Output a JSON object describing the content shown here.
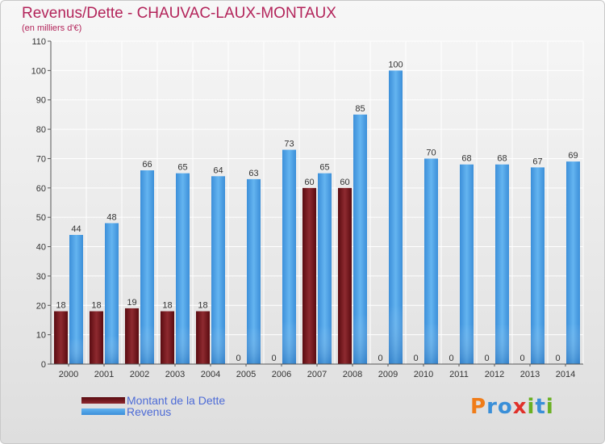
{
  "header": {
    "title": "Revenus/Dette - CHAUVAC-LAUX-MONTAUX",
    "subtitle": "(en milliers d'€)"
  },
  "legend": [
    {
      "label": "Montant de la Dette",
      "color": "#7a1a1f"
    },
    {
      "label": "Revenus",
      "color": "#4a9fe3"
    }
  ],
  "logo": {
    "letters": [
      {
        "ch": "P",
        "color": "#f07c18"
      },
      {
        "ch": "r",
        "color": "#3a8fd8"
      },
      {
        "ch": "o",
        "color": "#3a8fd8"
      },
      {
        "ch": "x",
        "color": "#e0302a"
      },
      {
        "ch": "i",
        "color": "#6ab023"
      },
      {
        "ch": "t",
        "color": "#3a8fd8"
      },
      {
        "ch": "i",
        "color": "#6ab023"
      }
    ]
  },
  "chart_data": {
    "type": "bar",
    "title": "Revenus/Dette - CHAUVAC-LAUX-MONTAUX",
    "subtitle": "(en milliers d'€)",
    "categories": [
      "2000",
      "2001",
      "2002",
      "2003",
      "2004",
      "2005",
      "2006",
      "2007",
      "2008",
      "2009",
      "2010",
      "2011",
      "2012",
      "2013",
      "2014"
    ],
    "series": [
      {
        "name": "Montant de la Dette",
        "color": "#7a1a1f",
        "values": [
          18,
          18,
          19,
          18,
          18,
          0,
          0,
          60,
          60,
          0,
          0,
          0,
          0,
          0,
          0
        ]
      },
      {
        "name": "Revenus",
        "color": "#4a9fe3",
        "values": [
          44,
          48,
          66,
          65,
          64,
          63,
          73,
          65,
          85,
          100,
          70,
          68,
          68,
          67,
          69
        ]
      }
    ],
    "ylim": [
      0,
      110
    ],
    "yticks": [
      0,
      10,
      20,
      30,
      40,
      50,
      60,
      70,
      80,
      90,
      100,
      110
    ],
    "grid": true,
    "legend_position": "bottom-left"
  }
}
